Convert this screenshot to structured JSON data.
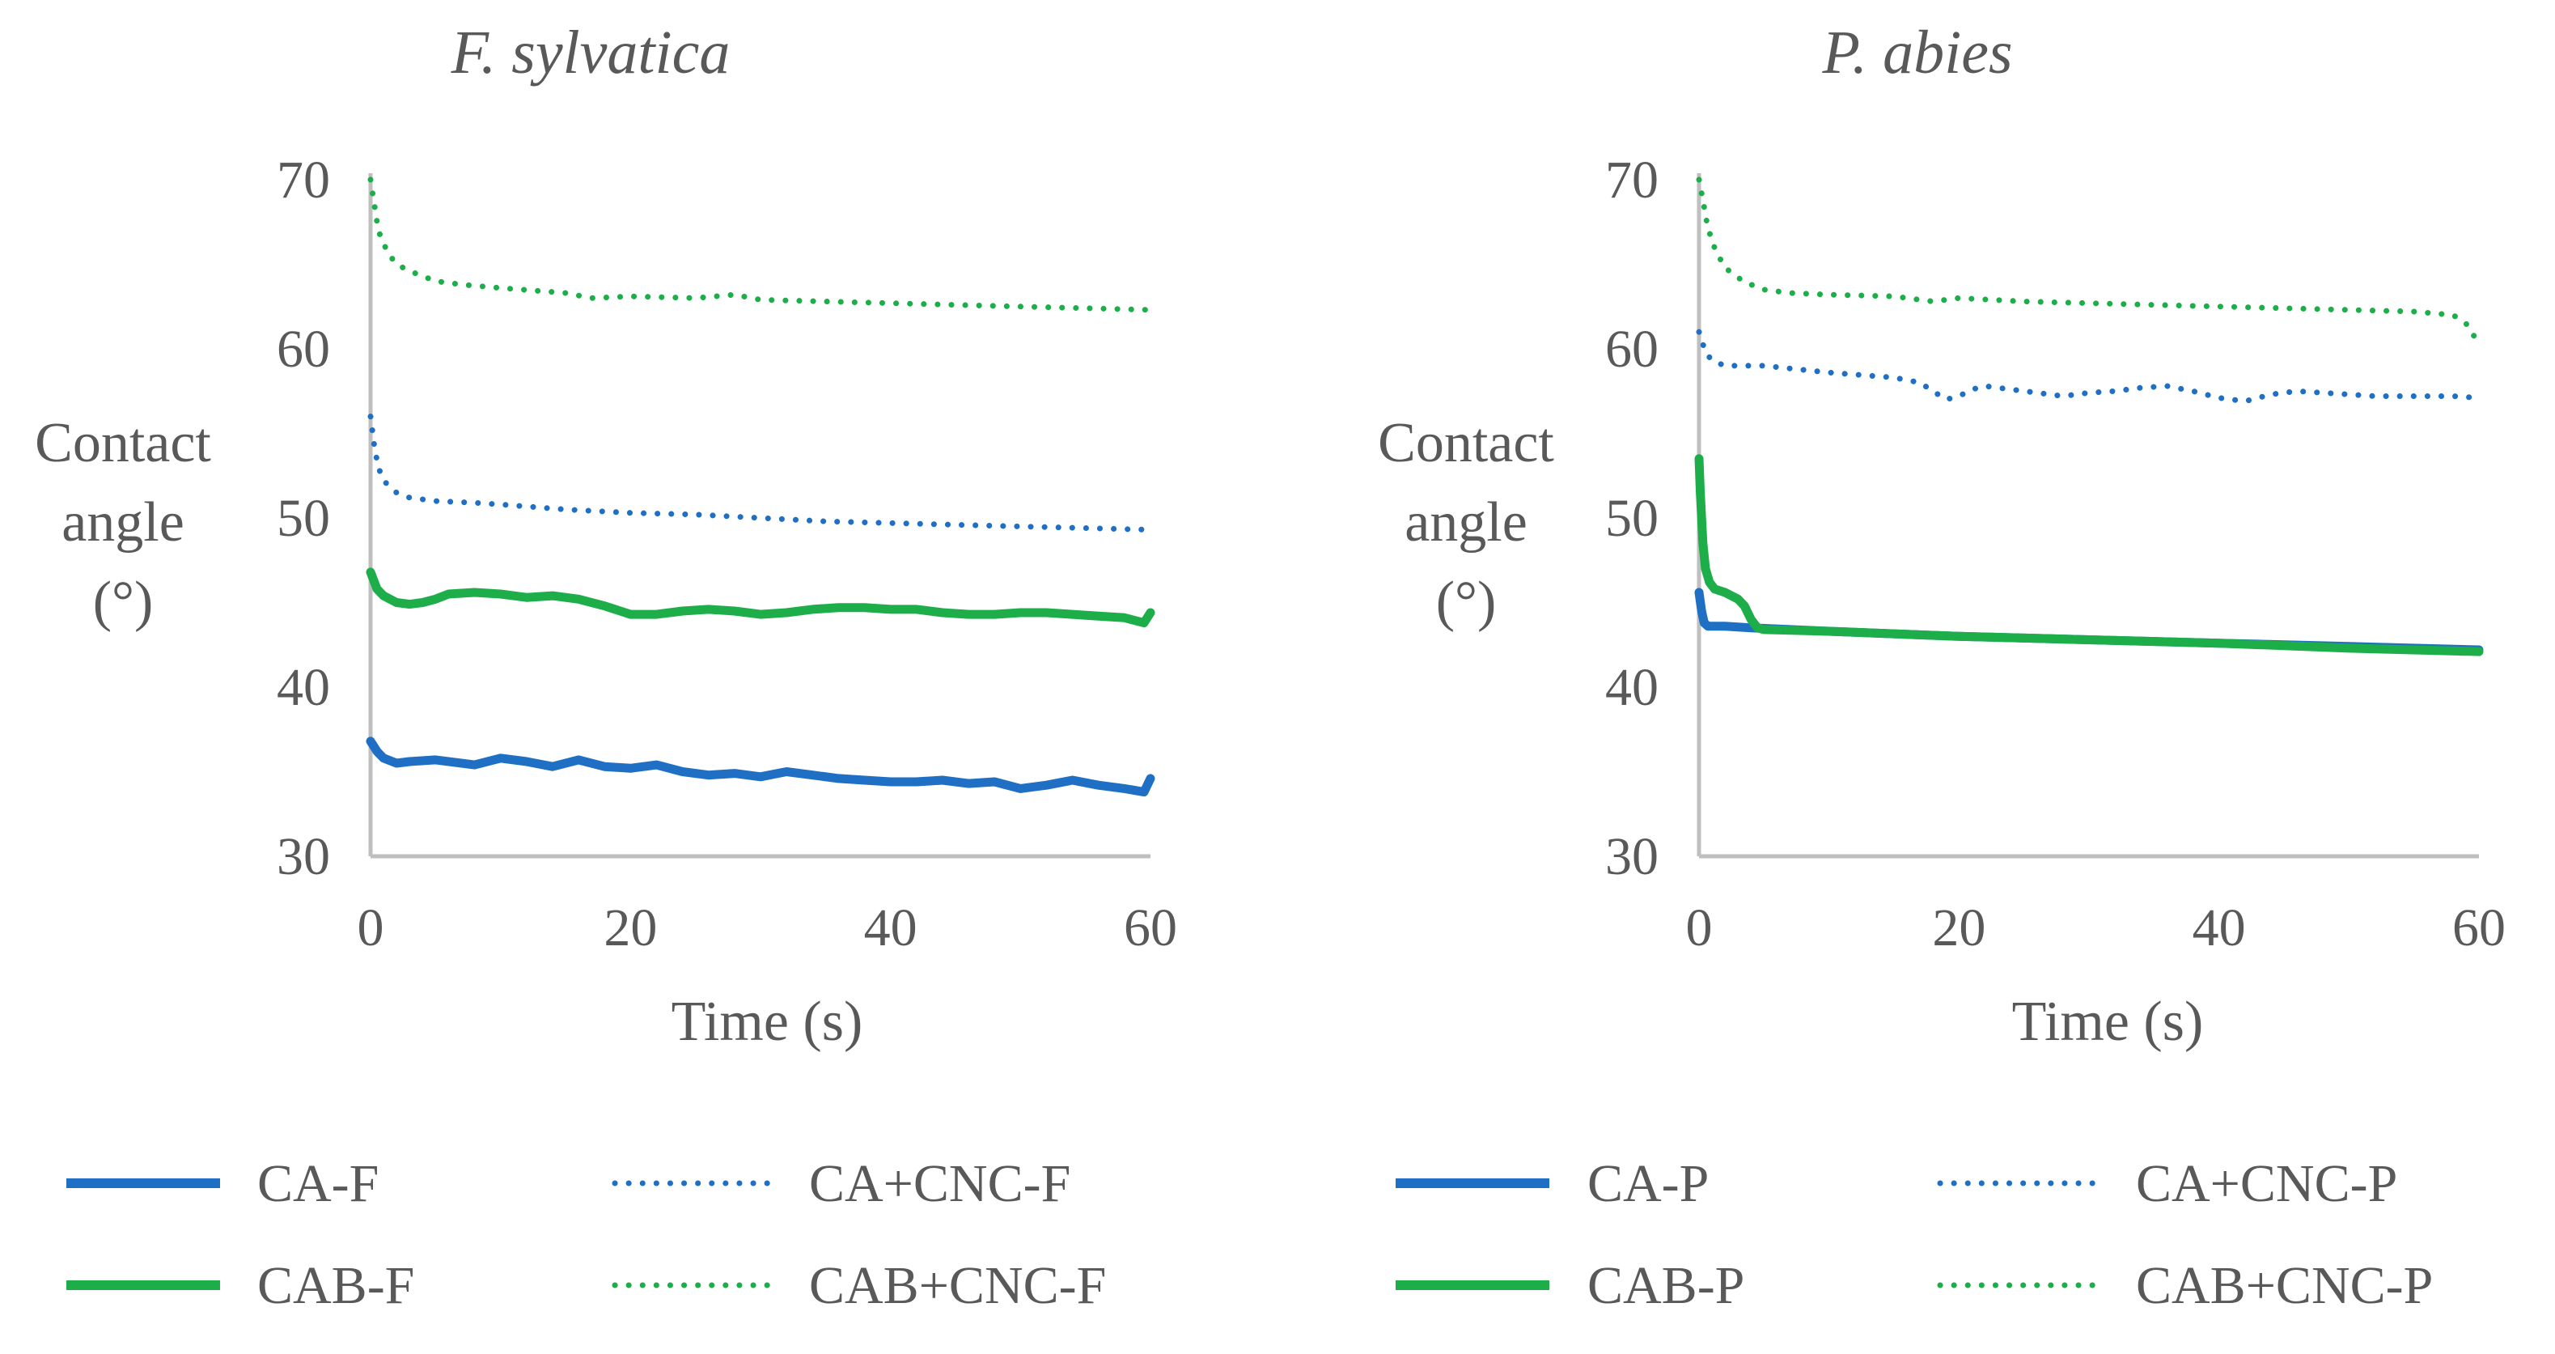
{
  "colors": {
    "blue": "#1F6FC5",
    "green": "#1DAE4A",
    "text": "#595959",
    "axis": "#BFBFBF"
  },
  "chart_data": [
    {
      "type": "line",
      "title": "F. sylvatica",
      "xlabel": "Time (s)",
      "ylabel": [
        "Contact",
        "angle",
        "(°)"
      ],
      "xlim": [
        0,
        60
      ],
      "ylim": [
        30,
        70
      ],
      "xticks": [
        "0",
        "20",
        "40",
        "60"
      ],
      "yticks": [
        "30",
        "40",
        "50",
        "60",
        "70"
      ],
      "series": [
        {
          "name": "CA-F",
          "style": "solid",
          "color": "blue",
          "x": [
            0,
            0.5,
            1,
            2,
            3,
            5,
            8,
            10,
            12,
            14,
            16,
            18,
            20,
            22,
            24,
            26,
            28,
            30,
            32,
            34,
            36,
            38,
            40,
            42,
            44,
            46,
            48,
            50,
            52,
            54,
            56,
            58,
            59.5,
            60
          ],
          "values": [
            36.8,
            36.2,
            35.8,
            35.5,
            35.6,
            35.7,
            35.4,
            35.8,
            35.6,
            35.3,
            35.7,
            35.3,
            35.2,
            35.4,
            35.0,
            34.8,
            34.9,
            34.7,
            35.0,
            34.8,
            34.6,
            34.5,
            34.4,
            34.4,
            34.5,
            34.3,
            34.4,
            34.0,
            34.2,
            34.5,
            34.2,
            34.0,
            33.8,
            34.6
          ]
        },
        {
          "name": "CA+CNC-F",
          "style": "dotted",
          "color": "blue",
          "x": [
            0,
            0.3,
            0.6,
            1,
            2,
            3,
            5,
            8,
            10,
            15,
            20,
            25,
            30,
            35,
            40,
            45,
            50,
            55,
            60
          ],
          "values": [
            56.0,
            54.2,
            53.0,
            52.2,
            51.5,
            51.2,
            51.0,
            50.9,
            50.8,
            50.5,
            50.3,
            50.2,
            50.0,
            49.8,
            49.7,
            49.6,
            49.5,
            49.4,
            49.3
          ]
        },
        {
          "name": "CAB-F",
          "style": "solid",
          "color": "green",
          "x": [
            0,
            0.5,
            1,
            2,
            3,
            4,
            5,
            6,
            8,
            10,
            12,
            14,
            16,
            18,
            20,
            22,
            24,
            26,
            28,
            30,
            32,
            34,
            36,
            38,
            40,
            42,
            44,
            46,
            48,
            50,
            52,
            54,
            56,
            58,
            59.5,
            60
          ],
          "values": [
            46.8,
            45.8,
            45.4,
            45.0,
            44.9,
            45.0,
            45.2,
            45.5,
            45.6,
            45.5,
            45.3,
            45.4,
            45.2,
            44.8,
            44.3,
            44.3,
            44.5,
            44.6,
            44.5,
            44.3,
            44.4,
            44.6,
            44.7,
            44.7,
            44.6,
            44.6,
            44.4,
            44.3,
            44.3,
            44.4,
            44.4,
            44.3,
            44.2,
            44.1,
            43.8,
            44.4
          ]
        },
        {
          "name": "CAB+CNC-F",
          "style": "dotted",
          "color": "green",
          "x": [
            0,
            0.3,
            0.6,
            1,
            1.5,
            2,
            3,
            4,
            5,
            7,
            10,
            15,
            17,
            20,
            25,
            28,
            30,
            35,
            40,
            45,
            50,
            55,
            60
          ],
          "values": [
            70.0,
            68.5,
            67.0,
            66.2,
            65.5,
            65.0,
            64.6,
            64.3,
            64.0,
            63.8,
            63.6,
            63.3,
            63.0,
            63.1,
            63.0,
            63.2,
            62.9,
            62.8,
            62.7,
            62.6,
            62.5,
            62.4,
            62.3
          ]
        }
      ]
    },
    {
      "type": "line",
      "title": "P. abies",
      "xlabel": "Time (s)",
      "ylabel": [
        "Contact",
        "angle",
        "(°)"
      ],
      "xlim": [
        0,
        60
      ],
      "ylim": [
        30,
        70
      ],
      "xticks": [
        "0",
        "20",
        "40",
        "60"
      ],
      "yticks": [
        "30",
        "40",
        "50",
        "60",
        "70"
      ],
      "series": [
        {
          "name": "CA-P",
          "style": "solid",
          "color": "blue",
          "x": [
            0,
            0.2,
            0.4,
            0.7,
            1,
            2,
            4,
            10,
            20,
            30,
            40,
            50,
            60
          ],
          "values": [
            45.6,
            44.5,
            43.8,
            43.6,
            43.6,
            43.6,
            43.5,
            43.3,
            43.0,
            42.8,
            42.6,
            42.4,
            42.2
          ]
        },
        {
          "name": "CA+CNC-P",
          "style": "dotted",
          "color": "blue",
          "x": [
            0,
            0.5,
            1,
            2,
            5,
            10,
            15,
            17,
            18,
            19,
            20,
            21,
            22,
            24,
            26,
            28,
            30,
            32,
            34,
            36,
            38,
            40,
            42,
            44,
            46,
            48,
            50,
            52,
            54,
            56,
            58,
            60
          ],
          "values": [
            61.0,
            59.8,
            59.3,
            59.0,
            59.0,
            58.6,
            58.3,
            58.0,
            57.5,
            57.0,
            57.2,
            57.6,
            57.8,
            57.6,
            57.4,
            57.2,
            57.4,
            57.5,
            57.7,
            57.8,
            57.5,
            57.1,
            56.9,
            57.3,
            57.5,
            57.4,
            57.3,
            57.2,
            57.2,
            57.2,
            57.2,
            57.1
          ]
        },
        {
          "name": "CAB-P",
          "style": "solid",
          "color": "green",
          "x": [
            0,
            0.1,
            0.2,
            0.3,
            0.5,
            0.8,
            1.2,
            2,
            3,
            3.5,
            4,
            4.5,
            5,
            10,
            20,
            30,
            40,
            50,
            60
          ],
          "values": [
            53.5,
            51.5,
            50.0,
            48.5,
            47.0,
            46.2,
            45.8,
            45.6,
            45.2,
            44.8,
            44.0,
            43.5,
            43.4,
            43.3,
            43.0,
            42.8,
            42.6,
            42.3,
            42.1
          ]
        },
        {
          "name": "CAB+CNC-P",
          "style": "dotted",
          "color": "green",
          "x": [
            0,
            0.3,
            0.6,
            1,
            1.5,
            2,
            3,
            4,
            5,
            7,
            10,
            15,
            18,
            20,
            25,
            30,
            35,
            40,
            45,
            50,
            55,
            58,
            59,
            60
          ],
          "values": [
            70.0,
            68.8,
            67.5,
            66.3,
            65.5,
            64.8,
            64.2,
            63.8,
            63.5,
            63.3,
            63.2,
            63.1,
            62.8,
            63.0,
            62.8,
            62.7,
            62.6,
            62.5,
            62.4,
            62.3,
            62.2,
            62.0,
            61.5,
            60.3
          ]
        }
      ]
    }
  ]
}
